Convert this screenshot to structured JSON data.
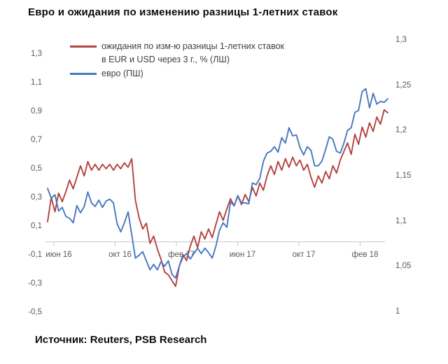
{
  "title": "Евро и ожидания по изменению разницы 1-летних ставок",
  "source": "Источник: Reuters, PSB Research",
  "colors": {
    "expectations_line": "#B2423E",
    "euro_line": "#4677C1",
    "axis_text": "#595959",
    "axis_line": "#C9C9C9"
  },
  "legend": {
    "items": [
      {
        "lines": [
          "ожидания по изм-ю разницы 1-летних ставок",
          "в EUR и USD через 3 г., % (ЛШ)"
        ],
        "color": "#B2423E"
      },
      {
        "lines": [
          "евро (ПШ)"
        ],
        "color": "#4677C1"
      }
    ]
  },
  "chart_data": {
    "type": "line",
    "title": "Евро и ожидания по изменению разницы 1-летних ставок",
    "legend_position": "top-left",
    "grid": false,
    "x_axis": {
      "tick_labels": [
        "июн 16",
        "окт 16",
        "фев 17",
        "июн 17",
        "окт 17",
        "фев 18"
      ]
    },
    "left_axis": {
      "min": -0.5,
      "max": 1.3,
      "step": 0.2,
      "tick_labels": [
        "1,3",
        "1,1",
        "0,9",
        "0,7",
        "0,5",
        "0,3",
        "0,1",
        "-0,1",
        "-0,3",
        "-0,5"
      ]
    },
    "right_axis": {
      "min": 1.0,
      "max": 1.3,
      "step": 0.05,
      "tick_labels": [
        "1,3",
        "1,25",
        "1,2",
        "1,15",
        "1,1",
        "1,05",
        "1"
      ]
    },
    "x": [
      "2016-06-03",
      "2016-06-10",
      "2016-06-17",
      "2016-06-24",
      "2016-07-01",
      "2016-07-08",
      "2016-07-15",
      "2016-07-22",
      "2016-07-29",
      "2016-08-05",
      "2016-08-12",
      "2016-08-19",
      "2016-08-26",
      "2016-09-02",
      "2016-09-09",
      "2016-09-16",
      "2016-09-23",
      "2016-09-30",
      "2016-10-07",
      "2016-10-14",
      "2016-10-21",
      "2016-10-28",
      "2016-11-04",
      "2016-11-11",
      "2016-11-18",
      "2016-11-25",
      "2016-12-02",
      "2016-12-09",
      "2016-12-16",
      "2016-12-23",
      "2016-12-30",
      "2017-01-06",
      "2017-01-13",
      "2017-01-20",
      "2017-01-27",
      "2017-02-03",
      "2017-02-10",
      "2017-02-17",
      "2017-02-24",
      "2017-03-03",
      "2017-03-10",
      "2017-03-17",
      "2017-03-24",
      "2017-03-31",
      "2017-04-07",
      "2017-04-14",
      "2017-04-21",
      "2017-04-28",
      "2017-05-05",
      "2017-05-12",
      "2017-05-19",
      "2017-05-26",
      "2017-06-02",
      "2017-06-09",
      "2017-06-16",
      "2017-06-23",
      "2017-06-30",
      "2017-07-07",
      "2017-07-14",
      "2017-07-21",
      "2017-07-28",
      "2017-08-04",
      "2017-08-11",
      "2017-08-18",
      "2017-08-25",
      "2017-09-01",
      "2017-09-08",
      "2017-09-15",
      "2017-09-22",
      "2017-09-29",
      "2017-10-06",
      "2017-10-13",
      "2017-10-20",
      "2017-10-27",
      "2017-11-03",
      "2017-11-10",
      "2017-11-17",
      "2017-11-24",
      "2017-12-01",
      "2017-12-08",
      "2017-12-15",
      "2017-12-22",
      "2017-12-29",
      "2018-01-05",
      "2018-01-12",
      "2018-01-19",
      "2018-01-26",
      "2018-02-02",
      "2018-02-09",
      "2018-02-16",
      "2018-02-23",
      "2018-03-02",
      "2018-03-09",
      "2018-03-16"
    ],
    "series": [
      {
        "name": "ожидания по изм-ю разницы 1-летних ставок в EUR и USD через 3 г., % (ЛШ)",
        "axis": "left",
        "color": "#B2423E",
        "values": [
          0.13,
          0.3,
          0.2,
          0.33,
          0.27,
          0.34,
          0.42,
          0.36,
          0.44,
          0.52,
          0.45,
          0.55,
          0.49,
          0.53,
          0.49,
          0.53,
          0.5,
          0.53,
          0.49,
          0.53,
          0.5,
          0.54,
          0.51,
          0.57,
          0.28,
          0.16,
          0.08,
          0.12,
          -0.02,
          0.03,
          -0.06,
          -0.13,
          -0.22,
          -0.24,
          -0.28,
          -0.32,
          -0.18,
          -0.1,
          -0.14,
          -0.04,
          0.03,
          -0.05,
          0.06,
          0.01,
          0.08,
          0.02,
          0.11,
          0.2,
          0.14,
          0.22,
          0.29,
          0.24,
          0.31,
          0.25,
          0.32,
          0.27,
          0.37,
          0.31,
          0.4,
          0.35,
          0.45,
          0.52,
          0.46,
          0.55,
          0.49,
          0.57,
          0.51,
          0.58,
          0.52,
          0.56,
          0.49,
          0.53,
          0.44,
          0.37,
          0.45,
          0.4,
          0.48,
          0.43,
          0.52,
          0.47,
          0.56,
          0.62,
          0.68,
          0.6,
          0.74,
          0.67,
          0.79,
          0.72,
          0.82,
          0.76,
          0.86,
          0.81,
          0.91,
          0.89
        ]
      },
      {
        "name": "евро (ПШ)",
        "axis": "right",
        "color": "#4677C1",
        "values": [
          1.136,
          1.125,
          1.129,
          1.111,
          1.115,
          1.105,
          1.103,
          1.098,
          1.117,
          1.109,
          1.116,
          1.132,
          1.12,
          1.116,
          1.123,
          1.115,
          1.122,
          1.124,
          1.12,
          1.097,
          1.088,
          1.098,
          1.11,
          1.085,
          1.059,
          1.062,
          1.066,
          1.056,
          1.046,
          1.052,
          1.046,
          1.055,
          1.05,
          1.056,
          1.041,
          1.037,
          1.05,
          1.06,
          1.064,
          1.058,
          1.064,
          1.07,
          1.064,
          1.07,
          1.065,
          1.059,
          1.072,
          1.09,
          1.098,
          1.093,
          1.121,
          1.117,
          1.128,
          1.12,
          1.12,
          1.119,
          1.142,
          1.14,
          1.147,
          1.166,
          1.175,
          1.177,
          1.182,
          1.176,
          1.192,
          1.186,
          1.203,
          1.194,
          1.195,
          1.181,
          1.173,
          1.182,
          1.178,
          1.161,
          1.161,
          1.166,
          1.179,
          1.193,
          1.19,
          1.177,
          1.175,
          1.186,
          1.2,
          1.203,
          1.22,
          1.222,
          1.243,
          1.246,
          1.225,
          1.241,
          1.229,
          1.232,
          1.231,
          1.235
        ]
      }
    ]
  }
}
